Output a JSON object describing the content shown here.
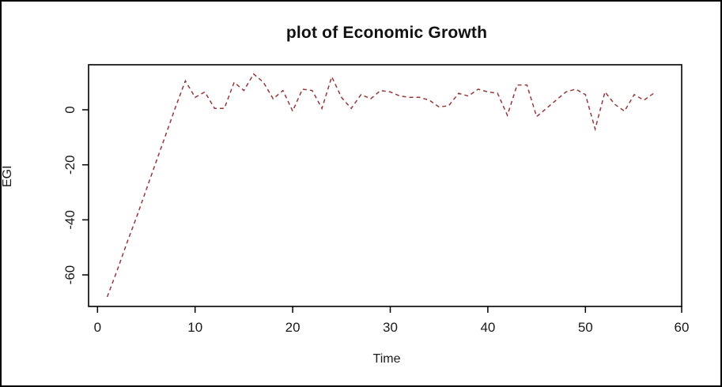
{
  "title": "plot of Economic Growth",
  "chart_data": {
    "type": "line",
    "title": "plot of Economic Growth",
    "xlabel": "Time",
    "ylabel": "EGI",
    "x": [
      1,
      2,
      3,
      4,
      5,
      6,
      7,
      8,
      9,
      10,
      11,
      12,
      13,
      14,
      15,
      16,
      17,
      18,
      19,
      20,
      21,
      22,
      23,
      24,
      25,
      26,
      27,
      28,
      29,
      30,
      31,
      32,
      33,
      34,
      35,
      36,
      37,
      38,
      39,
      40,
      41,
      42,
      43,
      44,
      45,
      46,
      47,
      48,
      49,
      50,
      51,
      52,
      53,
      54,
      55,
      56,
      57
    ],
    "values": [
      -68,
      -58.5,
      -48.5,
      -39,
      -29,
      -19,
      -9,
      1,
      10.5,
      4.5,
      6.5,
      0.5,
      0.5,
      10,
      7,
      13,
      10,
      4,
      7,
      -0.5,
      7.5,
      7,
      0.5,
      12,
      4.5,
      0.5,
      5.5,
      4,
      7,
      6.5,
      5,
      4.5,
      4.5,
      3.5,
      1,
      1.5,
      6,
      5,
      7.5,
      6.5,
      6,
      -2,
      9,
      9,
      -2.5,
      0.5,
      3.5,
      6.5,
      7.5,
      5.5,
      -7,
      6.5,
      2,
      -0.5,
      5.5,
      3.5,
      6
    ],
    "xticks": [
      0,
      10,
      20,
      30,
      40,
      50,
      60
    ],
    "yticks": [
      0,
      -20,
      -40,
      -60
    ],
    "xlim": [
      -1,
      60.1
    ],
    "ylim": [
      -71.5,
      16.4
    ],
    "grid": false,
    "legend": null,
    "line": {
      "color": "#96383a",
      "style": "dashed",
      "dash_pattern": "5,4"
    },
    "axis_color": "#000000",
    "background": "#ffffff"
  }
}
